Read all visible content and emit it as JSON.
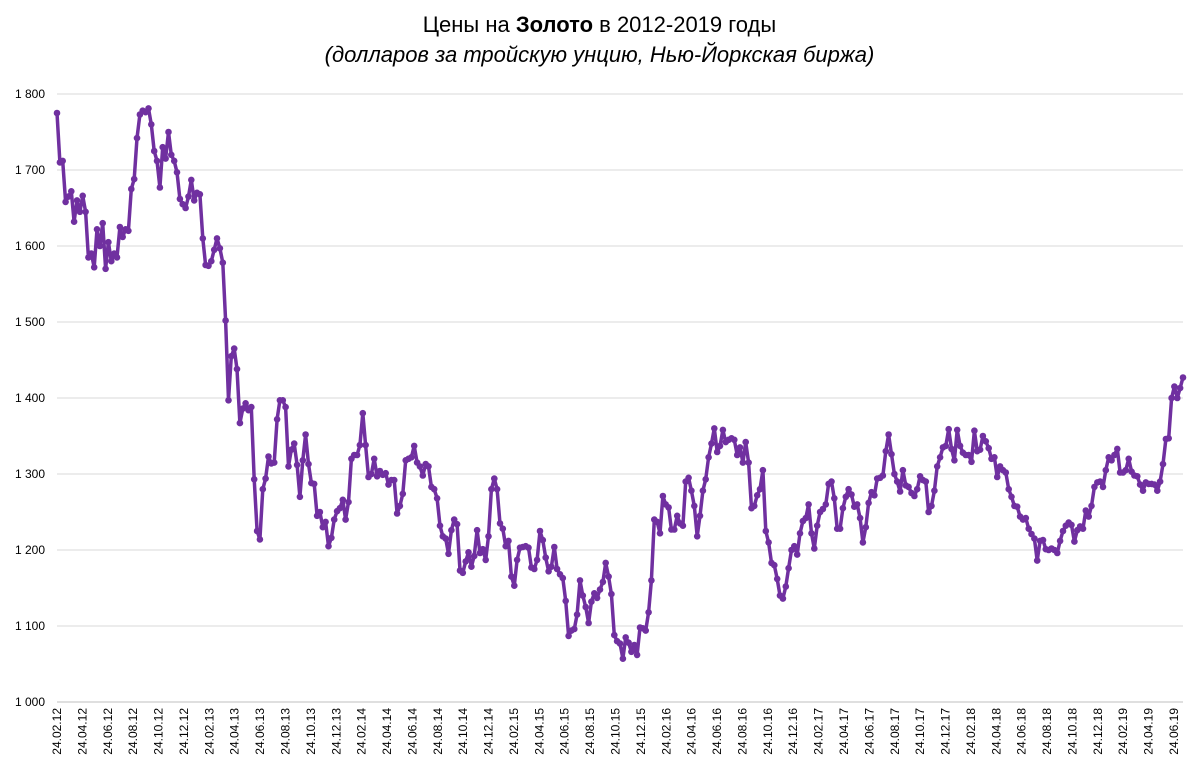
{
  "title": {
    "prefix": "Цены на ",
    "bold": "Золото",
    "suffix": " в 2012-2019 годы",
    "subtitle": "(долларов за тройскую унцию, Нью-Йоркская биржа)"
  },
  "colors": {
    "line": "#7030A0",
    "grid": "#d9d9d9",
    "axis": "#bfbfbf"
  },
  "chart_data": {
    "type": "line",
    "title": "Цены на Золото в 2012-2019 годы",
    "subtitle": "(долларов за тройскую унцию, Нью-Йоркская биржа)",
    "ylim": [
      1000,
      1800
    ],
    "yticks": [
      1000,
      1100,
      1200,
      1300,
      1400,
      1500,
      1600,
      1700,
      1800
    ],
    "ytick_labels": [
      "1 000",
      "1 100",
      "1 200",
      "1 300",
      "1 400",
      "1 500",
      "1 600",
      "1 700",
      "1 800"
    ],
    "xtick_labels": [
      "24.02.12",
      "24.04.12",
      "24.06.12",
      "24.08.12",
      "24.10.12",
      "24.12.12",
      "24.02.13",
      "24.04.13",
      "24.06.13",
      "24.08.13",
      "24.10.13",
      "24.12.13",
      "24.02.14",
      "24.04.14",
      "24.06.14",
      "24.08.14",
      "24.10.14",
      "24.12.14",
      "24.02.15",
      "24.04.15",
      "24.06.15",
      "24.08.15",
      "24.10.15",
      "24.12.15",
      "24.02.16",
      "24.04.16",
      "24.06.16",
      "24.08.16",
      "24.10.16",
      "24.12.16",
      "24.02.17",
      "24.04.17",
      "24.06.17",
      "24.08.17",
      "24.10.17",
      "24.12.17",
      "24.02.18",
      "24.04.18",
      "24.06.18",
      "24.08.18",
      "24.10.18",
      "24.12.18",
      "24.02.19",
      "24.04.19",
      "24.06.19"
    ],
    "grid": true,
    "legend": "none",
    "series": [
      {
        "frequency": "weekly",
        "values": [
          1775,
          1710,
          1712,
          1658,
          1665,
          1672,
          1632,
          1660,
          1645,
          1666,
          1645,
          1585,
          1590,
          1572,
          1622,
          1600,
          1630,
          1570,
          1605,
          1580,
          1590,
          1585,
          1625,
          1612,
          1622,
          1620,
          1675,
          1688,
          1742,
          1773,
          1778,
          1776,
          1781,
          1760,
          1725,
          1712,
          1677,
          1730,
          1715,
          1750,
          1720,
          1712,
          1697,
          1662,
          1655,
          1650,
          1665,
          1687,
          1660,
          1670,
          1668,
          1610,
          1575,
          1574,
          1580,
          1595,
          1610,
          1597,
          1578,
          1502,
          1397,
          1455,
          1465,
          1438,
          1367,
          1386,
          1393,
          1384,
          1388,
          1293,
          1225,
          1214,
          1280,
          1294,
          1323,
          1314,
          1315,
          1372,
          1397,
          1397,
          1388,
          1310,
          1332,
          1340,
          1312,
          1270,
          1318,
          1352,
          1313,
          1288,
          1287,
          1245,
          1250,
          1230,
          1237,
          1205,
          1216,
          1240,
          1251,
          1255,
          1266,
          1240,
          1263,
          1320,
          1325,
          1325,
          1338,
          1380,
          1338,
          1296,
          1300,
          1320,
          1297,
          1304,
          1299,
          1301,
          1286,
          1292,
          1292,
          1248,
          1258,
          1274,
          1318,
          1320,
          1322,
          1337,
          1315,
          1310,
          1298,
          1313,
          1310,
          1283,
          1280,
          1268,
          1232,
          1218,
          1215,
          1195,
          1226,
          1240,
          1234,
          1173,
          1170,
          1185,
          1197,
          1178,
          1192,
          1226,
          1196,
          1201,
          1187,
          1218,
          1280,
          1294,
          1280,
          1235,
          1228,
          1205,
          1212,
          1165,
          1153,
          1187,
          1203,
          1204,
          1205,
          1203,
          1177,
          1175,
          1187,
          1225,
          1213,
          1190,
          1172,
          1178,
          1204,
          1175,
          1168,
          1163,
          1133,
          1087,
          1094,
          1096,
          1115,
          1160,
          1140,
          1125,
          1104,
          1132,
          1143,
          1137,
          1148,
          1158,
          1183,
          1165,
          1142,
          1088,
          1080,
          1077,
          1057,
          1085,
          1078,
          1066,
          1075,
          1062,
          1098,
          1097,
          1094,
          1118,
          1160,
          1240,
          1237,
          1222,
          1271,
          1260,
          1256,
          1227,
          1227,
          1245,
          1235,
          1232,
          1290,
          1295,
          1278,
          1258,
          1218,
          1245,
          1278,
          1293,
          1322,
          1340,
          1360,
          1329,
          1337,
          1358,
          1342,
          1345,
          1347,
          1345,
          1325,
          1335,
          1315,
          1342,
          1315,
          1255,
          1258,
          1272,
          1280,
          1305,
          1225,
          1210,
          1183,
          1180,
          1162,
          1140,
          1136,
          1152,
          1176,
          1200,
          1205,
          1194,
          1222,
          1238,
          1242,
          1260,
          1222,
          1202,
          1232,
          1250,
          1254,
          1260,
          1287,
          1290,
          1268,
          1228,
          1228,
          1255,
          1270,
          1280,
          1273,
          1257,
          1260,
          1242,
          1210,
          1230,
          1262,
          1276,
          1272,
          1294,
          1295,
          1298,
          1330,
          1352,
          1326,
          1300,
          1290,
          1277,
          1305,
          1285,
          1283,
          1275,
          1271,
          1280,
          1297,
          1292,
          1290,
          1250,
          1258,
          1278,
          1310,
          1322,
          1335,
          1337,
          1359,
          1333,
          1318,
          1358,
          1337,
          1328,
          1325,
          1325,
          1316,
          1357,
          1330,
          1332,
          1350,
          1343,
          1334,
          1320,
          1322,
          1296,
          1310,
          1305,
          1302,
          1280,
          1270,
          1258,
          1257,
          1244,
          1240,
          1242,
          1228,
          1221,
          1215,
          1186,
          1212,
          1213,
          1201,
          1200,
          1202,
          1200,
          1196,
          1212,
          1225,
          1232,
          1236,
          1233,
          1211,
          1226,
          1231,
          1228,
          1252,
          1244,
          1258,
          1283,
          1289,
          1290,
          1283,
          1305,
          1322,
          1318,
          1325,
          1333,
          1302,
          1302,
          1305,
          1320,
          1303,
          1298,
          1297,
          1286,
          1278,
          1289,
          1287,
          1287,
          1286,
          1278,
          1290,
          1313,
          1346,
          1347,
          1400,
          1415,
          1400,
          1413,
          1427
        ]
      }
    ]
  }
}
